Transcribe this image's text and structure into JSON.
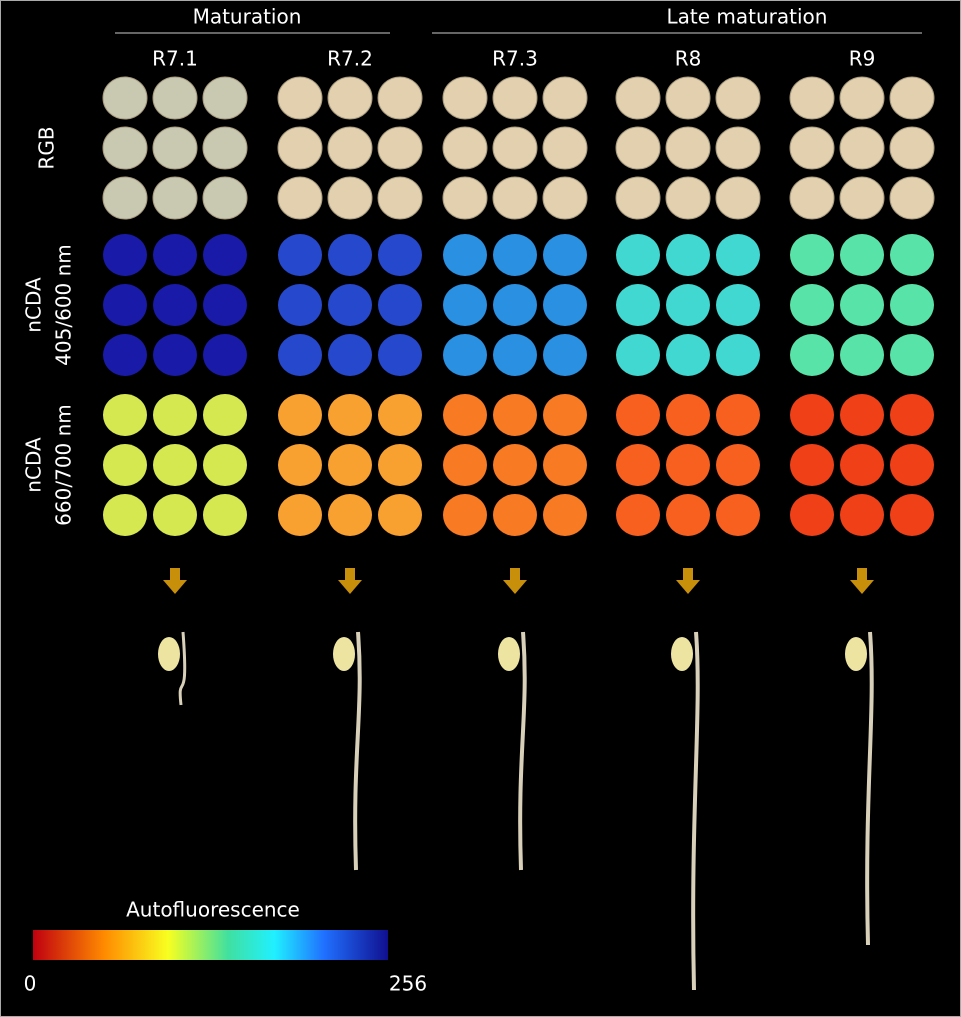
{
  "groups": [
    {
      "label": "Maturation"
    },
    {
      "label": "Late maturation"
    }
  ],
  "columns": [
    {
      "label": "R7.1"
    },
    {
      "label": "R7.2"
    },
    {
      "label": "R7.3"
    },
    {
      "label": "R8"
    },
    {
      "label": "R9"
    }
  ],
  "rows": [
    {
      "lines": [
        "RGB"
      ]
    },
    {
      "lines": [
        "nCDA",
        "405/600 nm"
      ]
    },
    {
      "lines": [
        "nCDA",
        "660/700 nm"
      ]
    }
  ],
  "colorbar": {
    "title": "Autofluorescence",
    "min": 0,
    "max": 256
  }
}
